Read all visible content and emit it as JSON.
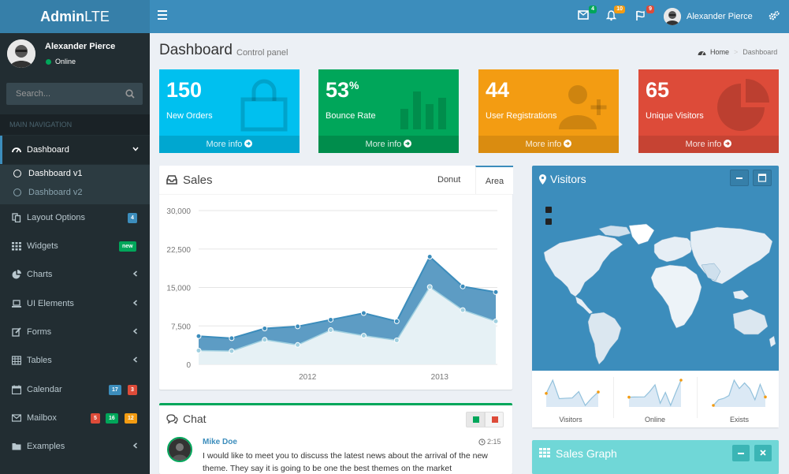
{
  "header": {
    "logo_bold": "Admin",
    "logo_rest": "LTE",
    "messages_count": "4",
    "notifications_count": "10",
    "tasks_count": "9",
    "user_name": "Alexander Pierce"
  },
  "sidebar": {
    "user_name": "Alexander Pierce",
    "status": "Online",
    "search_placeholder": "Search...",
    "nav_header": "MAIN NAVIGATION",
    "items": [
      {
        "label": "Dashboard",
        "icon": "dashboard-icon"
      },
      {
        "label": "Layout Options",
        "icon": "files-icon",
        "badge": "4"
      },
      {
        "label": "Widgets",
        "icon": "grid-icon",
        "badge": "new"
      },
      {
        "label": "Charts",
        "icon": "pie-chart-icon"
      },
      {
        "label": "UI Elements",
        "icon": "laptop-icon"
      },
      {
        "label": "Forms",
        "icon": "edit-icon"
      },
      {
        "label": "Tables",
        "icon": "table-icon"
      },
      {
        "label": "Calendar",
        "icon": "calendar-icon",
        "badges": [
          "17",
          "3"
        ]
      },
      {
        "label": "Mailbox",
        "icon": "envelope-icon",
        "badges": [
          "5",
          "16",
          "12"
        ]
      },
      {
        "label": "Examples",
        "icon": "folder-icon"
      }
    ],
    "sub_items": [
      "Dashboard v1",
      "Dashboard v2"
    ]
  },
  "content": {
    "title": "Dashboard",
    "subtitle": "Control panel",
    "breadcrumb_home": "Home",
    "breadcrumb_current": "Dashboard"
  },
  "info_boxes": [
    {
      "value": "150",
      "suffix": "",
      "label": "New Orders",
      "footer": "More info",
      "color": "#00c0ef",
      "icon": "shopping-bag-icon"
    },
    {
      "value": "53",
      "suffix": "%",
      "label": "Bounce Rate",
      "footer": "More info",
      "color": "#00a65a",
      "icon": "bar-chart-icon"
    },
    {
      "value": "44",
      "suffix": "",
      "label": "User Registrations",
      "footer": "More info",
      "color": "#f39c12",
      "icon": "user-add-icon"
    },
    {
      "value": "65",
      "suffix": "",
      "label": "Unique Visitors",
      "footer": "More info",
      "color": "#dd4b39",
      "icon": "pie-chart-icon"
    }
  ],
  "sales": {
    "title": "Sales",
    "tabs": [
      "Donut",
      "Area"
    ],
    "active_tab": "Area"
  },
  "chart_data": {
    "type": "area",
    "ylim": [
      0,
      30000
    ],
    "yticks": [
      "0",
      "7,500",
      "15,000",
      "22,500",
      "30,000"
    ],
    "xticks": [
      {
        "label": "2012",
        "index": 3.3
      },
      {
        "label": "2013",
        "index": 7.3
      }
    ],
    "series": [
      {
        "values": [
          2700,
          2600,
          4800,
          3800,
          6700,
          5600,
          4700,
          15100,
          10600,
          8400
        ],
        "color": "#a0d0e0"
      },
      {
        "values": [
          5500,
          5100,
          7000,
          7400,
          8700,
          10000,
          8400,
          21000,
          15200,
          14100
        ],
        "color": "#3c8dbc"
      }
    ]
  },
  "visitors": {
    "title": "Visitors",
    "sparklines": [
      {
        "label": "Visitors",
        "values": [
          1000,
          1200,
          920,
          927,
          931,
          1027,
          819,
          930,
          1021
        ]
      },
      {
        "label": "Online",
        "values": [
          515,
          519,
          520,
          522,
          652,
          810,
          370,
          627,
          319,
          630,
          921
        ]
      },
      {
        "label": "Exists",
        "values": [
          15,
          19,
          20,
          22,
          33,
          27,
          31,
          27,
          19,
          30,
          21
        ]
      }
    ]
  },
  "chat": {
    "title": "Chat",
    "name": "Mike Doe",
    "time": "2:15",
    "message": "I would like to meet you to discuss the latest news about the arrival of the new theme. They say it is going to be one the best themes on the market"
  },
  "sales_graph": {
    "title": "Sales Graph"
  }
}
